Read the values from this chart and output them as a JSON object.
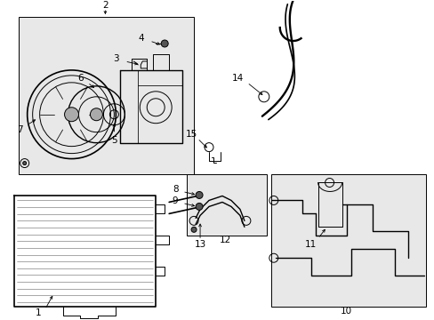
{
  "bg_color": "#ffffff",
  "box_fill": "#e8e8e8",
  "line_color": "#000000",
  "fig_width": 4.89,
  "fig_height": 3.6,
  "dpi": 100,
  "font_size": 7,
  "lw": 0.7
}
